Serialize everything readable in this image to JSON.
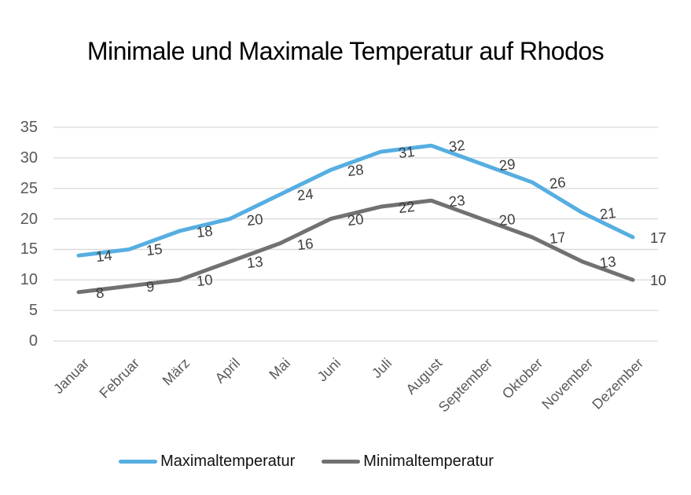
{
  "chart_data": {
    "type": "line",
    "title": "Minimale und Maximale Temperatur auf Rhodos",
    "categories": [
      "Januar",
      "Februar",
      "März",
      "April",
      "Mai",
      "Juni",
      "Juli",
      "August",
      "September",
      "Oktober",
      "November",
      "Dezember"
    ],
    "series": [
      {
        "name": "Maximaltemperatur",
        "color": "#56AEE1",
        "values": [
          14,
          15,
          18,
          20,
          24,
          28,
          31,
          32,
          29,
          26,
          21,
          17
        ]
      },
      {
        "name": "Minimaltemperatur",
        "color": "#717171",
        "values": [
          8,
          9,
          10,
          13,
          16,
          20,
          22,
          23,
          20,
          17,
          13,
          10
        ]
      }
    ],
    "y_ticks": [
      35,
      30,
      25,
      20,
      15,
      10,
      5,
      0
    ],
    "ylim": [
      0,
      35
    ],
    "grid": true,
    "data_labels": true,
    "legend_position": "bottom",
    "colors": {
      "gridline": "#D9D9D9",
      "axis_text": "#595959",
      "data_label_text": "#3F3F3F",
      "title_text": "#000000",
      "background": "#FFFFFF"
    }
  }
}
